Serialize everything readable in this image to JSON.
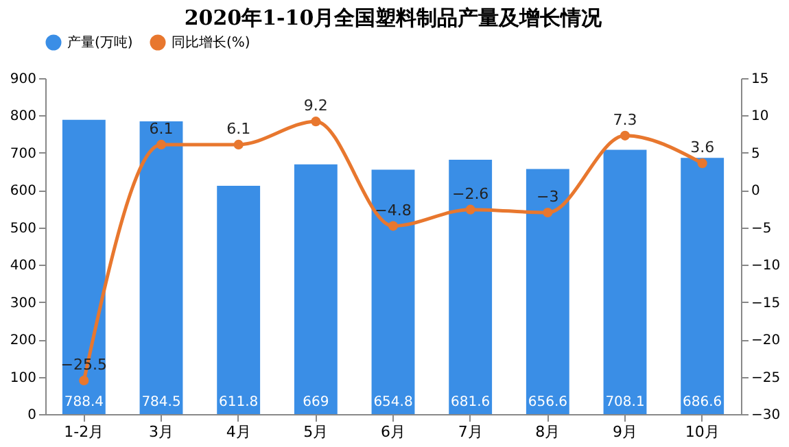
{
  "chart_data": {
    "type": "bar",
    "title": "2020年1-10月全国塑料制品产量及增长情况",
    "categories": [
      "1-2月",
      "3月",
      "4月",
      "5月",
      "6月",
      "7月",
      "8月",
      "9月",
      "10月"
    ],
    "series": [
      {
        "name": "产量(万吨)",
        "color": "#3a8ee6",
        "values": [
          788.4,
          784.5,
          611.8,
          669,
          654.8,
          681.6,
          656.6,
          708.1,
          686.6
        ]
      },
      {
        "name": "同比增长(%)",
        "type": "line",
        "axis": "y2",
        "color": "#e8772e",
        "values": [
          -25.5,
          6.1,
          6.1,
          9.2,
          -4.8,
          -2.6,
          -3,
          7.3,
          3.6
        ]
      }
    ],
    "ylim": [
      0,
      900
    ],
    "yticks": [
      0,
      100,
      200,
      300,
      400,
      500,
      600,
      700,
      800,
      900
    ],
    "y2lim": [
      -30,
      15
    ],
    "y2ticks": [
      -30,
      -25,
      -20,
      -15,
      -10,
      -5,
      0,
      5,
      10,
      15
    ],
    "data_labels": true,
    "legend": "top",
    "grid": false,
    "marker": "circle",
    "line_style": "solid"
  }
}
